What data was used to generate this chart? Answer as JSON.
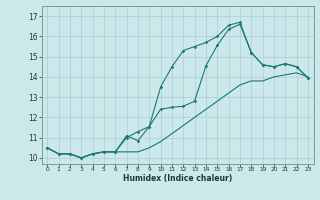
{
  "xlabel": "Humidex (Indice chaleur)",
  "bg_color": "#cce8ea",
  "grid_color": "#aacfd4",
  "line_color": "#1a7a6e",
  "xlim": [
    -0.5,
    23.5
  ],
  "ylim": [
    9.7,
    17.5
  ],
  "xticks": [
    0,
    1,
    2,
    3,
    4,
    5,
    6,
    7,
    8,
    9,
    10,
    11,
    12,
    13,
    14,
    15,
    16,
    17,
    18,
    19,
    20,
    21,
    22,
    23
  ],
  "yticks": [
    10,
    11,
    12,
    13,
    14,
    15,
    16,
    17
  ],
  "line1_x": [
    0,
    1,
    2,
    3,
    4,
    5,
    6,
    7,
    8,
    9,
    10,
    11,
    12,
    13,
    14,
    15,
    16,
    17,
    18,
    19,
    20,
    21,
    22,
    23
  ],
  "line1_y": [
    10.5,
    10.2,
    10.2,
    10.0,
    10.2,
    10.3,
    10.3,
    11.1,
    10.85,
    11.55,
    13.5,
    14.5,
    15.3,
    15.5,
    15.7,
    16.0,
    16.55,
    16.7,
    15.2,
    14.6,
    14.5,
    14.65,
    14.5,
    13.95
  ],
  "line2_x": [
    0,
    1,
    2,
    3,
    4,
    5,
    6,
    7,
    8,
    9,
    10,
    11,
    12,
    13,
    14,
    15,
    16,
    17,
    18,
    19,
    20,
    21,
    22,
    23
  ],
  "line2_y": [
    10.5,
    10.2,
    10.2,
    10.0,
    10.2,
    10.3,
    10.3,
    11.0,
    11.3,
    11.55,
    12.4,
    12.5,
    12.55,
    12.8,
    14.55,
    15.55,
    16.35,
    16.6,
    15.2,
    14.6,
    14.5,
    14.65,
    14.5,
    13.95
  ],
  "line3_x": [
    0,
    1,
    2,
    3,
    4,
    5,
    6,
    7,
    8,
    9,
    10,
    11,
    12,
    13,
    14,
    15,
    16,
    17,
    18,
    19,
    20,
    21,
    22,
    23
  ],
  "line3_y": [
    10.5,
    10.2,
    10.2,
    10.0,
    10.2,
    10.3,
    10.3,
    10.3,
    10.3,
    10.5,
    10.8,
    11.2,
    11.6,
    12.0,
    12.4,
    12.8,
    13.2,
    13.6,
    13.8,
    13.8,
    14.0,
    14.1,
    14.2,
    14.0
  ]
}
